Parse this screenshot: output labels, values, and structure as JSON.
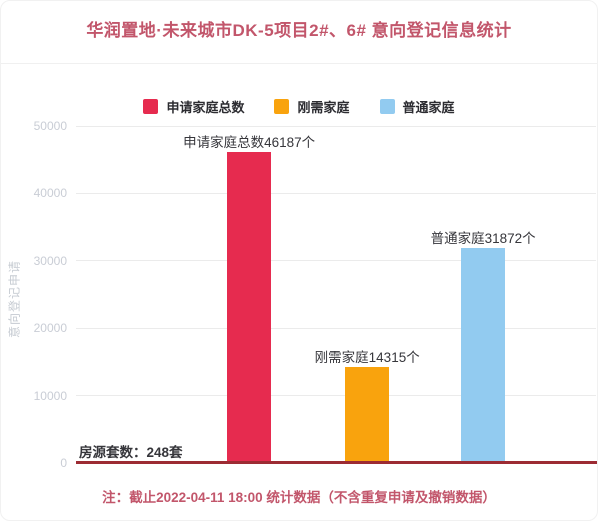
{
  "header": {
    "title": "华润置地·未来城市DK-5项目2#、6# 意向登记信息统计"
  },
  "chart_data": {
    "type": "bar",
    "title": "华润置地·未来城市DK-5项目2#、6# 意向登记信息统计",
    "categories": [
      "申请家庭总数",
      "刚需家庭",
      "普通家庭"
    ],
    "values": [
      46187,
      14315,
      31872
    ],
    "colors": [
      "#e62b4f",
      "#f9a30d",
      "#92cbf0"
    ],
    "point_labels": [
      "申请家庭总数46187个",
      "刚需家庭14315个",
      "普通家庭31872个"
    ],
    "legend": [
      {
        "label": "申请家庭总数",
        "color": "#e62b4f"
      },
      {
        "label": "刚需家庭",
        "color": "#f9a30d"
      },
      {
        "label": "普通家庭",
        "color": "#92cbf0"
      }
    ],
    "legend_position": "top",
    "grid": true,
    "xlabel": "",
    "ylabel": "意向登记申请",
    "ylim": [
      0,
      50000
    ],
    "yticks": [
      0,
      10000,
      20000,
      30000,
      40000,
      50000
    ],
    "baseline": {
      "label": "房源套数：248套",
      "value": 248,
      "color": "#9c2b33"
    }
  },
  "footer": {
    "note": "注：截止2022-04-11 18:00 统计数据（不含重复申请及撤销数据）"
  }
}
